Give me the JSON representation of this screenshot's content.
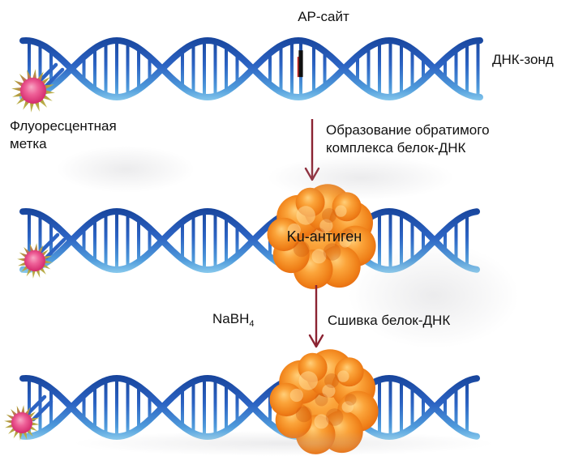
{
  "labels": {
    "ap_site": "АР-сайт",
    "dna_probe": "ДНК-зонд",
    "fluorescent": [
      "Флуоресцентная",
      "метка"
    ],
    "step1": [
      "Образование обратимого",
      "комплекса белок-ДНК"
    ],
    "ku_antigen": "Ku-антиген",
    "reagent": {
      "base": "NaBH",
      "sub": "4"
    },
    "step2": "Сшивка белок-ДНК"
  },
  "colors": {
    "background": "#ffffff",
    "text": "#111111",
    "arrow": "#8b2332",
    "dna_dark": "#123d92",
    "dna_mid": "#2c63c3",
    "dna_light_mid": "#4f9bdb",
    "dna_light": "#a5e0f5",
    "ap_mark": "#101010",
    "ap_mark_accent": "#c41a1a",
    "protein_light": "#ffcf7a",
    "protein_mid": "#f0821a",
    "protein_dark": "#cf4f06",
    "star_spike": "#b2a23e",
    "star_pink": "#ee5f97",
    "star_crimson": "#8f1742"
  }
}
